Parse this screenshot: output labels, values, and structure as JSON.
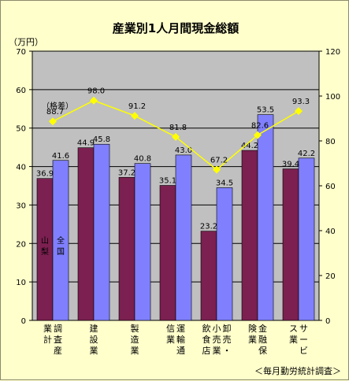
{
  "chart_data": {
    "type": "bar",
    "title": "産業別1人月間現金総額",
    "y_unit_label": "（万円）",
    "yticks_left": [
      "0",
      "10",
      "20",
      "30",
      "40",
      "50",
      "60",
      "70"
    ],
    "ylim_left": [
      0,
      70
    ],
    "yticks_right": [
      "0",
      "20",
      "40",
      "60",
      "80",
      "100",
      "120"
    ],
    "ylim_right": [
      0,
      120
    ],
    "categories": [
      "調査産業計",
      "建設業",
      "製造業",
      "運輸通信業",
      "卸売・小売業、飲食店",
      "金融・保険業",
      "サービス業"
    ],
    "series": [
      {
        "name": "山梨",
        "values": [
          36.9,
          44.9,
          37.2,
          35.1,
          23.2,
          44.2,
          39.4
        ],
        "color": "#7b2050"
      },
      {
        "name": "全国",
        "values": [
          41.6,
          45.8,
          40.8,
          43.0,
          34.5,
          53.5,
          42.2
        ],
        "color": "#8080ff"
      }
    ],
    "line_series": {
      "name": "（格差）",
      "axis": "right",
      "values": [
        88.7,
        98.0,
        91.2,
        81.8,
        67.2,
        82.6,
        93.3
      ],
      "color": "#ffff00"
    },
    "plot_background": "#c0c0c0",
    "grid": true,
    "source": "＜毎月勤労統計調査＞"
  }
}
